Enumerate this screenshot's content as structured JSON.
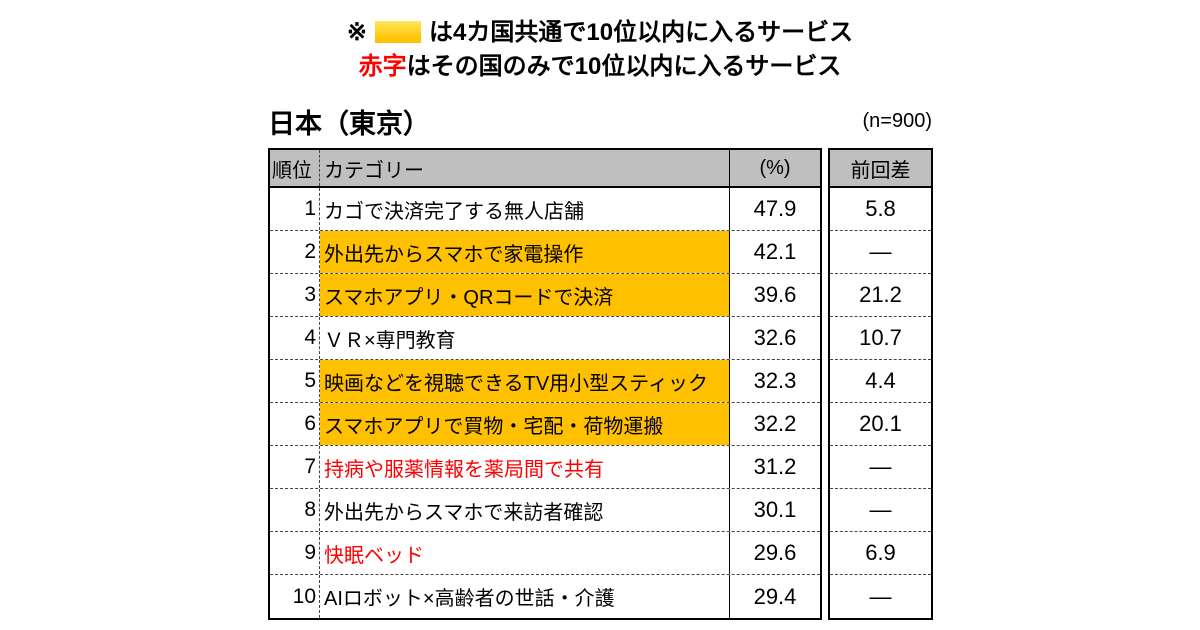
{
  "legend": {
    "marker": "※",
    "line1": "は4カ国共通で10位以内に入るサービス",
    "red_word": "赤字",
    "line2": "はその国のみで10位以内に入るサービス"
  },
  "header": {
    "title": "日本（東京）",
    "sample": "(n=900)"
  },
  "chart_data": {
    "type": "table",
    "title": "日本（東京）",
    "sample_size": "(n=900)",
    "columns": [
      "順位",
      "カテゴリー",
      "(%)",
      "前回差"
    ],
    "legend_notes": [
      "黄色ハイライトは4カ国共通で10位以内に入るサービス",
      "赤字はその国のみで10位以内に入るサービス"
    ],
    "rows": [
      {
        "rank": "1",
        "category": "カゴで決済完了する無人店舗",
        "percent": "47.9",
        "diff": "5.8",
        "highlight": false,
        "red": false
      },
      {
        "rank": "2",
        "category": "外出先からスマホで家電操作",
        "percent": "42.1",
        "diff": "―",
        "highlight": true,
        "red": false
      },
      {
        "rank": "3",
        "category": "スマホアプリ・QRコードで決済",
        "percent": "39.6",
        "diff": "21.2",
        "highlight": true,
        "red": false
      },
      {
        "rank": "4",
        "category": "ＶＲ×専門教育",
        "percent": "32.6",
        "diff": "10.7",
        "highlight": false,
        "red": false
      },
      {
        "rank": "5",
        "category": "映画などを視聴できるTV用小型スティック",
        "percent": "32.3",
        "diff": "4.4",
        "highlight": true,
        "red": false
      },
      {
        "rank": "6",
        "category": "スマホアプリで買物・宅配・荷物運搬",
        "percent": "32.2",
        "diff": "20.1",
        "highlight": true,
        "red": false
      },
      {
        "rank": "7",
        "category": "持病や服薬情報を薬局間で共有",
        "percent": "31.2",
        "diff": "―",
        "highlight": false,
        "red": true
      },
      {
        "rank": "8",
        "category": "外出先からスマホで来訪者確認",
        "percent": "30.1",
        "diff": "―",
        "highlight": false,
        "red": false
      },
      {
        "rank": "9",
        "category": "快眠ベッド",
        "percent": "29.6",
        "diff": "6.9",
        "highlight": false,
        "red": true
      },
      {
        "rank": "10",
        "category": "AIロボット×高齢者の世話・介護",
        "percent": "29.4",
        "diff": "―",
        "highlight": false,
        "red": false
      }
    ]
  },
  "colors": {
    "highlight": "#FFC000",
    "unique_red": "#FF0000",
    "header_bg": "#BFBFBF"
  }
}
